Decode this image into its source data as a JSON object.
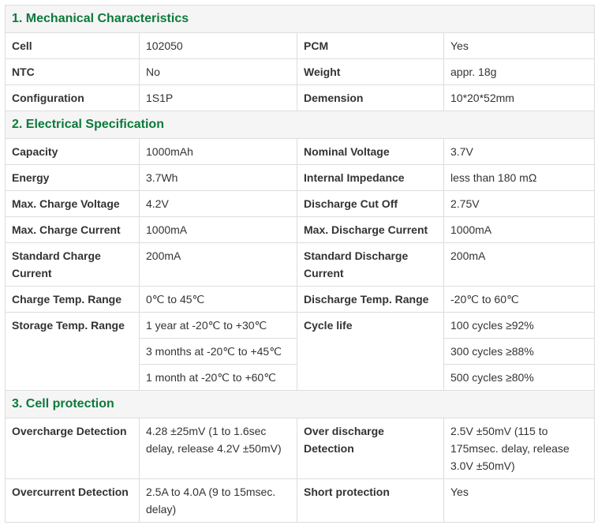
{
  "sections": [
    {
      "title": "1. Mechanical Characteristics",
      "rows": [
        [
          "Cell",
          "102050",
          "PCM",
          "Yes"
        ],
        [
          "NTC",
          "No",
          "Weight",
          "appr. 18g"
        ],
        [
          "Configuration",
          "1S1P",
          "Demension",
          "10*20*52mm"
        ]
      ]
    },
    {
      "title": "2. Electrical Specification",
      "rows": [
        [
          "Capacity",
          "1000mAh",
          "Nominal Voltage",
          "3.7V"
        ],
        [
          "Energy",
          "3.7Wh",
          "Internal Impedance",
          "less than 180 mΩ"
        ],
        [
          "Max. Charge Voltage",
          "4.2V",
          "Discharge Cut Off",
          "2.75V"
        ],
        [
          "Max. Charge Current",
          "1000mA",
          "Max. Discharge Current",
          "1000mA"
        ],
        [
          "Standard Charge Current",
          "200mA",
          "Standard Discharge Current",
          "200mA"
        ],
        [
          "Charge Temp. Range",
          "0℃ to 45℃",
          "Discharge Temp. Range",
          "-20℃ to 60℃"
        ],
        [
          "Storage Temp. Range",
          "1 year at -20℃ to +30℃",
          "Cycle life",
          "100 cycles ≥92%"
        ],
        [
          "3 months at -20℃ to +45℃",
          "300 cycles ≥88%"
        ],
        [
          "1 month at -20℃ to +60℃",
          "500 cycles ≥80%"
        ]
      ]
    },
    {
      "title": "3. Cell protection",
      "rows": [
        [
          "Overcharge Detection",
          "4.28 ±25mV (1 to 1.6sec delay, release 4.2V ±50mV)",
          "Over discharge Detection",
          "2.5V ±50mV (115 to 175msec. delay, release 3.0V ±50mV)"
        ],
        [
          "Overcurrent Detection",
          "2.5A to 4.0A (9 to 15msec. delay)",
          "Short protection",
          "Yes"
        ]
      ]
    }
  ]
}
